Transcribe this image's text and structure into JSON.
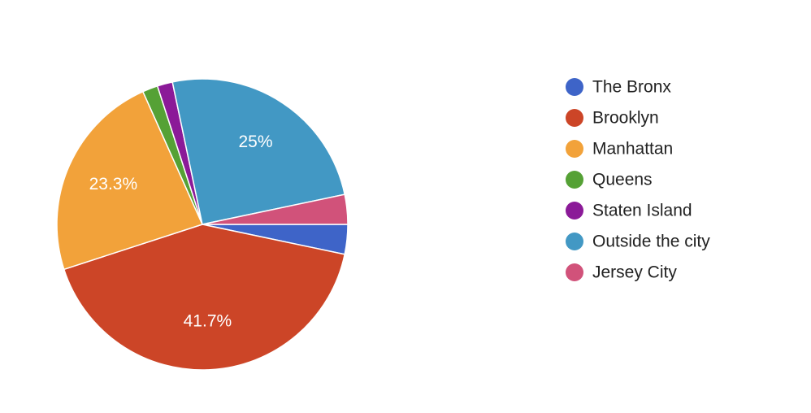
{
  "chart_data": {
    "type": "pie",
    "categories": [
      "The Bronx",
      "Brooklyn",
      "Manhattan",
      "Queens",
      "Staten Island",
      "Outside the city",
      "Jersey City"
    ],
    "values": [
      3.3,
      41.7,
      23.3,
      1.7,
      1.7,
      25,
      3.3
    ],
    "value_labels": [
      null,
      "41.7%",
      "23.3%",
      null,
      null,
      "25%",
      null
    ],
    "colors": [
      "#3e64c8",
      "#cc4527",
      "#f2a23a",
      "#55a135",
      "#8b1a98",
      "#4298c4",
      "#d1527a"
    ],
    "legend": "right"
  }
}
